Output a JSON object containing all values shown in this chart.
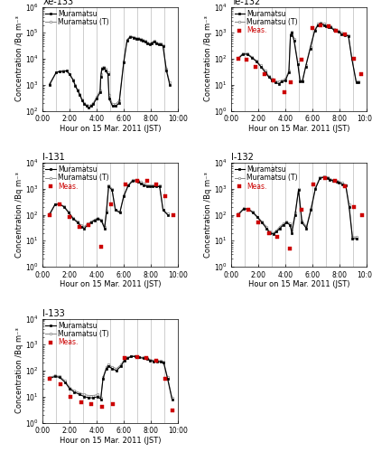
{
  "title_fontsize": 7,
  "label_fontsize": 6,
  "tick_fontsize": 5.5,
  "legend_fontsize": 5.5,
  "xlabel": "Hour on 15 Mar. 2011 (JST)",
  "ylabel": "Concentration /Bq m⁻³",
  "subplot_titles": [
    "Xe-133",
    "Te-132",
    "I-131",
    "I-132",
    "I-133"
  ],
  "ylims": {
    "Xe-133": [
      100,
      1000000
    ],
    "Te-132": [
      1,
      10000
    ],
    "I-131": [
      1,
      10000
    ],
    "I-132": [
      1,
      10000
    ],
    "I-133": [
      1,
      10000
    ]
  },
  "xlim": [
    0,
    600
  ],
  "xtick_positions": [
    0,
    120,
    240,
    360,
    480,
    600
  ],
  "xtick_labels": [
    "0:00",
    "2:00",
    "4:00",
    "6:00",
    "8:00",
    "10:00"
  ],
  "vlines": [
    60,
    120,
    180,
    240,
    300,
    360,
    420,
    480,
    540
  ],
  "color_black": "#000000",
  "color_gray": "#888888",
  "color_red": "#cc0000",
  "meas_label": "Meas.",
  "line1_label": "Muramatsu",
  "line2_label": "Muramatsu (T)",
  "Xe133_hybrid_t": [
    30,
    60,
    75,
    90,
    105,
    120,
    135,
    145,
    155,
    165,
    175,
    185,
    195,
    205,
    215,
    225,
    240,
    255,
    258,
    263,
    270,
    280,
    290,
    295,
    310,
    325,
    340,
    360,
    375,
    390,
    405,
    415,
    425,
    435,
    445,
    455,
    465,
    475,
    485,
    495,
    505,
    515,
    525,
    535,
    550,
    565
  ],
  "Xe133_hybrid_v": [
    1000,
    3000,
    3200,
    3300,
    3400,
    2500,
    1500,
    900,
    600,
    400,
    250,
    180,
    150,
    130,
    150,
    180,
    300,
    500,
    2000,
    4000,
    4500,
    3500,
    2500,
    300,
    150,
    150,
    200,
    7000,
    50000,
    70000,
    65000,
    60000,
    58000,
    55000,
    50000,
    45000,
    40000,
    35000,
    40000,
    45000,
    40000,
    35000,
    35000,
    30000,
    3500,
    1000
  ],
  "Xe133_terasaka_t": [
    30,
    60,
    75,
    90,
    105,
    120,
    135,
    145,
    155,
    165,
    175,
    185,
    195,
    205,
    215,
    225,
    240,
    255,
    258,
    263,
    270,
    280,
    290,
    295,
    310,
    325,
    340,
    360,
    375,
    390,
    405,
    415,
    425,
    435,
    445,
    455,
    465,
    475,
    485,
    495,
    505,
    515,
    525,
    535,
    550,
    565
  ],
  "Xe133_terasaka_v": [
    1100,
    3100,
    3300,
    3400,
    3500,
    2600,
    1600,
    950,
    650,
    450,
    280,
    200,
    170,
    150,
    170,
    200,
    350,
    600,
    2500,
    4500,
    5000,
    4000,
    3000,
    400,
    180,
    180,
    250,
    8000,
    55000,
    75000,
    70000,
    65000,
    62000,
    58000,
    53000,
    48000,
    43000,
    38000,
    43000,
    48000,
    42000,
    38000,
    38000,
    33000,
    4000,
    1200
  ],
  "Te132_hybrid_t": [
    30,
    50,
    70,
    90,
    110,
    130,
    150,
    165,
    180,
    195,
    210,
    225,
    240,
    255,
    262,
    268,
    278,
    295,
    305,
    315,
    330,
    350,
    370,
    385,
    395,
    410,
    420,
    430,
    440,
    455,
    465,
    475,
    490,
    505,
    520,
    535,
    555,
    565
  ],
  "Te132_hybrid_v": [
    100,
    150,
    150,
    110,
    80,
    50,
    30,
    20,
    15,
    12,
    11,
    13,
    15,
    30,
    800,
    1000,
    500,
    60,
    13,
    13,
    50,
    250,
    1200,
    2000,
    2200,
    2000,
    1800,
    1700,
    1600,
    1300,
    1200,
    1100,
    900,
    800,
    750,
    100,
    12,
    12
  ],
  "Te132_terasaka_t": [
    30,
    50,
    70,
    90,
    110,
    130,
    150,
    165,
    180,
    195,
    210,
    225,
    240,
    255,
    262,
    268,
    278,
    295,
    305,
    315,
    330,
    350,
    370,
    385,
    395,
    410,
    420,
    430,
    440,
    455,
    465,
    475,
    490,
    505,
    520,
    535,
    555,
    565
  ],
  "Te132_terasaka_v": [
    110,
    160,
    160,
    120,
    85,
    55,
    35,
    22,
    17,
    14,
    13,
    15,
    17,
    35,
    900,
    1100,
    600,
    70,
    15,
    15,
    55,
    280,
    1300,
    2200,
    2400,
    2200,
    2000,
    1900,
    1800,
    1400,
    1300,
    1200,
    1000,
    900,
    800,
    110,
    13,
    13
  ],
  "Te132_meas_t": [
    30,
    65,
    105,
    145,
    185,
    235,
    262,
    310,
    358,
    395,
    430,
    465,
    505,
    545,
    575
  ],
  "Te132_meas_v": [
    100,
    95,
    50,
    25,
    15,
    5,
    12,
    90,
    1500,
    2000,
    1800,
    1200,
    850,
    100,
    25
  ],
  "I131_hybrid_t": [
    30,
    55,
    75,
    95,
    115,
    135,
    155,
    170,
    185,
    200,
    215,
    230,
    245,
    260,
    275,
    283,
    293,
    308,
    323,
    343,
    360,
    380,
    400,
    415,
    425,
    435,
    450,
    465,
    475,
    490,
    505,
    520,
    535,
    555
  ],
  "I131_hybrid_v": [
    100,
    250,
    250,
    200,
    120,
    70,
    50,
    35,
    30,
    40,
    50,
    60,
    70,
    60,
    30,
    120,
    1200,
    900,
    150,
    120,
    500,
    1300,
    2000,
    2000,
    1800,
    1600,
    1400,
    1200,
    1200,
    1200,
    1200,
    1200,
    150,
    100
  ],
  "I131_terasaka_t": [
    30,
    55,
    75,
    95,
    115,
    135,
    155,
    170,
    185,
    200,
    215,
    230,
    245,
    260,
    275,
    283,
    293,
    308,
    323,
    343,
    360,
    380,
    400,
    415,
    425,
    435,
    450,
    465,
    475,
    490,
    505,
    520,
    535,
    555
  ],
  "I131_terasaka_v": [
    110,
    260,
    260,
    210,
    130,
    75,
    55,
    40,
    35,
    45,
    55,
    65,
    75,
    65,
    35,
    140,
    1400,
    1000,
    160,
    130,
    550,
    1400,
    2200,
    2200,
    2000,
    1800,
    1600,
    1400,
    1300,
    1300,
    1300,
    1300,
    160,
    110
  ],
  "I131_meas_t": [
    30,
    75,
    120,
    165,
    205,
    260,
    305,
    370,
    420,
    465,
    505,
    545,
    580
  ],
  "I131_meas_v": [
    100,
    250,
    80,
    35,
    40,
    6,
    250,
    1500,
    2000,
    2000,
    1500,
    500,
    100
  ],
  "I132_hybrid_t": [
    30,
    55,
    75,
    95,
    115,
    135,
    155,
    170,
    185,
    200,
    215,
    230,
    245,
    260,
    268,
    283,
    298,
    313,
    333,
    353,
    373,
    393,
    413,
    428,
    438,
    453,
    468,
    478,
    493,
    508,
    523,
    538,
    558
  ],
  "I132_hybrid_v": [
    100,
    170,
    160,
    120,
    80,
    50,
    30,
    20,
    18,
    22,
    30,
    40,
    50,
    40,
    20,
    100,
    900,
    50,
    30,
    150,
    1000,
    2500,
    2800,
    2500,
    2200,
    2000,
    1800,
    1700,
    1500,
    1300,
    200,
    12,
    12
  ],
  "I132_terasaka_t": [
    30,
    55,
    75,
    95,
    115,
    135,
    155,
    170,
    185,
    200,
    215,
    230,
    245,
    260,
    268,
    283,
    298,
    313,
    333,
    353,
    373,
    393,
    413,
    428,
    438,
    453,
    468,
    478,
    493,
    508,
    523,
    538,
    558
  ],
  "I132_terasaka_v": [
    110,
    180,
    170,
    130,
    85,
    55,
    35,
    22,
    20,
    25,
    35,
    45,
    55,
    45,
    25,
    120,
    1000,
    60,
    35,
    170,
    1100,
    2700,
    3000,
    2700,
    2400,
    2200,
    2000,
    1900,
    1700,
    1400,
    250,
    14,
    14
  ],
  "I132_meas_t": [
    30,
    75,
    120,
    165,
    205,
    260,
    310,
    365,
    415,
    460,
    505,
    545,
    580
  ],
  "I132_meas_v": [
    100,
    150,
    50,
    20,
    14,
    5,
    150,
    1500,
    2500,
    2000,
    1200,
    200,
    100
  ],
  "I133_hybrid_t": [
    30,
    55,
    75,
    100,
    120,
    140,
    165,
    185,
    205,
    225,
    245,
    258,
    268,
    283,
    293,
    308,
    328,
    348,
    363,
    378,
    393,
    413,
    428,
    448,
    463,
    478,
    493,
    508,
    523,
    538,
    555,
    575
  ],
  "I133_hybrid_v": [
    50,
    60,
    55,
    35,
    20,
    15,
    12,
    10,
    9,
    9,
    10,
    8,
    50,
    120,
    150,
    120,
    100,
    150,
    250,
    300,
    350,
    350,
    320,
    300,
    280,
    250,
    230,
    220,
    220,
    200,
    50,
    8
  ],
  "I133_terasaka_t": [
    30,
    55,
    75,
    100,
    120,
    140,
    165,
    185,
    205,
    225,
    245,
    258,
    268,
    283,
    293,
    308,
    328,
    348,
    363,
    378,
    393,
    413,
    428,
    448,
    463,
    478,
    493,
    508,
    523,
    538,
    555,
    575
  ],
  "I133_terasaka_v": [
    55,
    65,
    60,
    40,
    22,
    17,
    14,
    12,
    11,
    11,
    12,
    9,
    55,
    140,
    170,
    140,
    120,
    170,
    270,
    320,
    370,
    370,
    340,
    320,
    300,
    270,
    250,
    240,
    240,
    220,
    55,
    9
  ],
  "I133_meas_t": [
    30,
    80,
    125,
    170,
    215,
    265,
    310,
    365,
    420,
    460,
    505,
    545,
    575
  ],
  "I133_meas_v": [
    50,
    30,
    10,
    6,
    5,
    4,
    5,
    300,
    330,
    300,
    250,
    50,
    3
  ]
}
